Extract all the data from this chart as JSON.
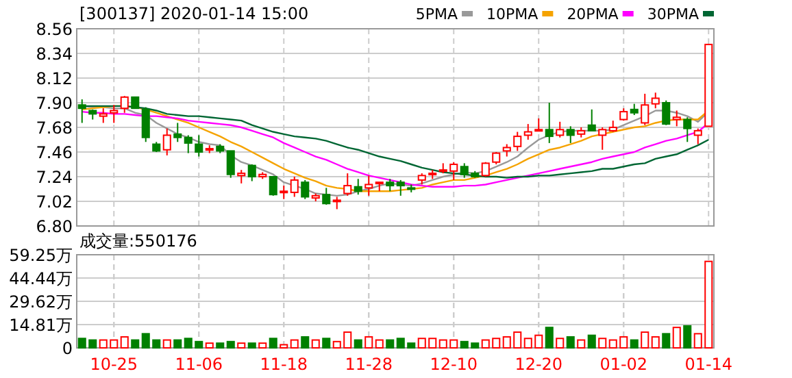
{
  "chart_data": [
    {
      "type": "candlestick",
      "title": "[300137] 2020-01-14 15:00",
      "categories": [
        null,
        null,
        null,
        null,
        null,
        null,
        null,
        null,
        null,
        null,
        null,
        null,
        null,
        null,
        null,
        null,
        null,
        null,
        null,
        null,
        null,
        null,
        null,
        null,
        null,
        null,
        null,
        null,
        null,
        null,
        null,
        null,
        null,
        null,
        null,
        null,
        null,
        null,
        null,
        null,
        null,
        null,
        null,
        null,
        null,
        null,
        null,
        null,
        null,
        null,
        null,
        null,
        null,
        null,
        null,
        null,
        null,
        null,
        null,
        null
      ],
      "ohlc": [
        [
          7.88,
          7.93,
          7.72,
          7.85
        ],
        [
          7.83,
          7.84,
          7.75,
          7.8
        ],
        [
          7.78,
          7.85,
          7.72,
          7.8
        ],
        [
          7.81,
          7.88,
          7.72,
          7.83
        ],
        [
          7.85,
          7.96,
          7.81,
          7.95
        ],
        [
          7.95,
          7.95,
          7.85,
          7.85
        ],
        [
          7.84,
          7.86,
          7.55,
          7.59
        ],
        [
          7.53,
          7.55,
          7.46,
          7.47
        ],
        [
          7.48,
          7.67,
          7.43,
          7.61
        ],
        [
          7.62,
          7.72,
          7.55,
          7.59
        ],
        [
          7.59,
          7.61,
          7.45,
          7.54
        ],
        [
          7.53,
          7.61,
          7.42,
          7.46
        ],
        [
          7.48,
          7.52,
          7.45,
          7.49
        ],
        [
          7.51,
          7.53,
          7.45,
          7.47
        ],
        [
          7.47,
          7.47,
          7.23,
          7.26
        ],
        [
          7.25,
          7.3,
          7.18,
          7.27
        ],
        [
          7.34,
          7.35,
          7.2,
          7.24
        ],
        [
          7.24,
          7.28,
          7.22,
          7.26
        ],
        [
          7.24,
          7.24,
          7.07,
          7.08
        ],
        [
          7.1,
          7.16,
          7.04,
          7.11
        ],
        [
          7.1,
          7.24,
          7.06,
          7.21
        ],
        [
          7.19,
          7.21,
          7.04,
          7.06
        ],
        [
          7.05,
          7.09,
          7.02,
          7.07
        ],
        [
          7.08,
          7.14,
          6.99,
          7.0
        ],
        [
          7.02,
          7.06,
          6.95,
          7.03
        ],
        [
          7.09,
          7.27,
          7.07,
          7.16
        ],
        [
          7.15,
          7.22,
          7.08,
          7.11
        ],
        [
          7.14,
          7.25,
          7.07,
          7.17
        ],
        [
          7.18,
          7.19,
          7.11,
          7.19
        ],
        [
          7.19,
          7.22,
          7.11,
          7.16
        ],
        [
          7.19,
          7.21,
          7.07,
          7.16
        ],
        [
          7.14,
          7.17,
          7.1,
          7.13
        ],
        [
          7.21,
          7.27,
          7.17,
          7.25
        ],
        [
          7.26,
          7.3,
          7.22,
          7.27
        ],
        [
          7.29,
          7.36,
          7.27,
          7.3
        ],
        [
          7.29,
          7.37,
          7.21,
          7.35
        ],
        [
          7.33,
          7.36,
          7.23,
          7.26
        ],
        [
          7.27,
          7.29,
          7.23,
          7.24
        ],
        [
          7.25,
          7.37,
          7.24,
          7.36
        ],
        [
          7.37,
          7.46,
          7.35,
          7.45
        ],
        [
          7.47,
          7.53,
          7.42,
          7.5
        ],
        [
          7.51,
          7.64,
          7.47,
          7.6
        ],
        [
          7.61,
          7.71,
          7.57,
          7.64
        ],
        [
          7.65,
          7.76,
          7.65,
          7.66
        ],
        [
          7.66,
          7.9,
          7.54,
          7.6
        ],
        [
          7.61,
          7.73,
          7.59,
          7.66
        ],
        [
          7.66,
          7.69,
          7.54,
          7.61
        ],
        [
          7.62,
          7.68,
          7.59,
          7.65
        ],
        [
          7.7,
          7.84,
          7.65,
          7.65
        ],
        [
          7.61,
          7.68,
          7.48,
          7.66
        ],
        [
          7.65,
          7.74,
          7.64,
          7.68
        ],
        [
          7.75,
          7.85,
          7.74,
          7.82
        ],
        [
          7.84,
          7.89,
          7.79,
          7.81
        ],
        [
          7.72,
          7.98,
          7.7,
          7.88
        ],
        [
          7.89,
          7.99,
          7.85,
          7.94
        ],
        [
          7.9,
          7.92,
          7.7,
          7.71
        ],
        [
          7.75,
          7.83,
          7.69,
          7.77
        ],
        [
          7.75,
          7.77,
          7.55,
          7.67
        ],
        [
          7.61,
          7.67,
          7.53,
          7.65
        ],
        [
          7.69,
          8.42,
          7.69,
          8.42
        ]
      ],
      "colors": [
        "#008000",
        "#008000",
        "#ff0000",
        "#ff0000",
        "#ff0000",
        "#008000",
        "#008000",
        "#008000",
        "#ff0000",
        "#008000",
        "#008000",
        "#008000",
        "#ff0000",
        "#008000",
        "#008000",
        "#ff0000",
        "#008000",
        "#ff0000",
        "#008000",
        "#ff0000",
        "#ff0000",
        "#008000",
        "#ff0000",
        "#008000",
        "#ff0000",
        "#ff0000",
        "#008000",
        "#ff0000",
        "#ff0000",
        "#008000",
        "#008000",
        "#008000",
        "#ff0000",
        "#ff0000",
        "#ff0000",
        "#ff0000",
        "#008000",
        "#008000",
        "#ff0000",
        "#ff0000",
        "#ff0000",
        "#ff0000",
        "#ff0000",
        "#ff0000",
        "#008000",
        "#ff0000",
        "#008000",
        "#ff0000",
        "#008000",
        "#ff0000",
        "#ff0000",
        "#ff0000",
        "#008000",
        "#ff0000",
        "#ff0000",
        "#008000",
        "#ff0000",
        "#008000",
        "#ff0000",
        "#ff0000"
      ],
      "series": [
        {
          "name": "5PMA",
          "type": "line",
          "color": "#999999",
          "values": [
            7.87,
            7.86,
            7.86,
            7.85,
            7.85,
            7.81,
            7.79,
            7.72,
            7.67,
            7.62,
            7.59,
            7.55,
            7.53,
            7.52,
            7.43,
            7.37,
            7.34,
            7.3,
            7.26,
            7.19,
            7.16,
            7.13,
            7.09,
            7.08,
            7.07,
            7.08,
            7.11,
            7.13,
            7.16,
            7.18,
            7.17,
            7.16,
            7.18,
            7.21,
            7.24,
            7.26,
            7.28,
            7.27,
            7.29,
            7.33,
            7.37,
            7.42,
            7.5,
            7.57,
            7.61,
            7.64,
            7.65,
            7.65,
            7.65,
            7.65,
            7.66,
            7.7,
            7.74,
            7.78,
            7.83,
            7.83,
            7.81,
            7.78,
            7.73,
            7.82
          ]
        },
        {
          "name": "10PMA",
          "type": "line",
          "color": "#f5a300",
          "values": [
            7.84,
            7.85,
            7.86,
            7.87,
            7.87,
            7.86,
            7.84,
            7.81,
            7.78,
            7.75,
            7.72,
            7.68,
            7.64,
            7.6,
            7.55,
            7.51,
            7.46,
            7.41,
            7.36,
            7.31,
            7.27,
            7.23,
            7.2,
            7.16,
            7.14,
            7.13,
            7.11,
            7.11,
            7.11,
            7.11,
            7.12,
            7.13,
            7.14,
            7.17,
            7.19,
            7.21,
            7.21,
            7.23,
            7.25,
            7.28,
            7.31,
            7.35,
            7.4,
            7.44,
            7.48,
            7.5,
            7.53,
            7.56,
            7.6,
            7.62,
            7.64,
            7.66,
            7.68,
            7.69,
            7.72,
            7.74,
            7.75,
            7.75,
            7.75,
            7.83
          ]
        },
        {
          "name": "20PMA",
          "type": "line",
          "color": "#ff00ff",
          "values": [
            7.82,
            7.81,
            7.81,
            7.8,
            7.8,
            7.79,
            7.78,
            7.78,
            7.77,
            7.76,
            7.74,
            7.73,
            7.72,
            7.71,
            7.7,
            7.68,
            7.65,
            7.62,
            7.59,
            7.54,
            7.5,
            7.46,
            7.42,
            7.39,
            7.35,
            7.31,
            7.28,
            7.25,
            7.23,
            7.21,
            7.19,
            7.17,
            7.16,
            7.15,
            7.15,
            7.15,
            7.16,
            7.16,
            7.17,
            7.19,
            7.21,
            7.23,
            7.25,
            7.27,
            7.29,
            7.31,
            7.33,
            7.35,
            7.37,
            7.4,
            7.42,
            7.44,
            7.46,
            7.5,
            7.53,
            7.56,
            7.58,
            7.61,
            7.64,
            7.72
          ]
        },
        {
          "name": "30PMA",
          "type": "line",
          "color": "#006633",
          "values": [
            7.87,
            7.87,
            7.87,
            7.87,
            7.87,
            7.86,
            7.85,
            7.83,
            7.8,
            7.79,
            7.78,
            7.78,
            7.77,
            7.76,
            7.75,
            7.74,
            7.7,
            7.67,
            7.64,
            7.62,
            7.6,
            7.59,
            7.58,
            7.56,
            7.53,
            7.5,
            7.48,
            7.45,
            7.42,
            7.4,
            7.38,
            7.35,
            7.32,
            7.3,
            7.28,
            7.27,
            7.26,
            7.25,
            7.24,
            7.24,
            7.23,
            7.24,
            7.24,
            7.25,
            7.25,
            7.26,
            7.27,
            7.28,
            7.29,
            7.31,
            7.31,
            7.33,
            7.35,
            7.36,
            7.4,
            7.42,
            7.44,
            7.48,
            7.52,
            7.57
          ]
        }
      ],
      "ylim": [
        6.8,
        8.56
      ],
      "yticks": [
        {
          "value": 6.8,
          "label": "6.80"
        },
        7.02,
        7.24,
        7.46,
        7.68,
        {
          "value": 7.9,
          "label": "7.90"
        },
        8.12,
        8.34,
        8.56
      ],
      "grid": true,
      "legend": "top right",
      "tick_labels": "y"
    },
    {
      "type": "bar",
      "title": "成交量:550176",
      "categories": [
        null,
        null,
        null,
        "10-25",
        null,
        null,
        null,
        null,
        null,
        null,
        null,
        "11-06",
        null,
        null,
        null,
        null,
        null,
        null,
        null,
        "11-18",
        null,
        null,
        null,
        null,
        null,
        null,
        null,
        "11-28",
        null,
        null,
        null,
        null,
        null,
        null,
        null,
        "12-10",
        null,
        null,
        null,
        null,
        null,
        null,
        null,
        "12-20",
        null,
        null,
        null,
        null,
        null,
        null,
        null,
        "01-02",
        null,
        null,
        null,
        null,
        null,
        null,
        null,
        "01-14"
      ],
      "values": [
        6,
        5,
        5,
        5,
        7,
        5,
        9,
        5,
        5,
        5,
        6,
        4,
        3,
        3,
        4,
        3,
        3,
        3,
        6,
        2,
        5,
        7,
        5,
        6,
        4,
        10,
        5,
        7,
        5,
        5,
        6,
        3,
        6,
        6,
        5,
        5,
        4,
        3,
        5,
        6,
        7,
        10,
        6,
        8,
        13,
        6,
        7,
        5,
        8,
        6,
        5,
        7,
        5,
        10,
        7,
        9,
        13,
        14,
        9,
        55.02
      ],
      "colors": [
        "#008000",
        "#008000",
        "#ff0000",
        "#ff0000",
        "#ff0000",
        "#008000",
        "#008000",
        "#008000",
        "#ff0000",
        "#008000",
        "#008000",
        "#008000",
        "#ff0000",
        "#008000",
        "#008000",
        "#ff0000",
        "#008000",
        "#ff0000",
        "#008000",
        "#ff0000",
        "#ff0000",
        "#008000",
        "#ff0000",
        "#008000",
        "#ff0000",
        "#ff0000",
        "#008000",
        "#ff0000",
        "#ff0000",
        "#008000",
        "#008000",
        "#008000",
        "#ff0000",
        "#ff0000",
        "#ff0000",
        "#ff0000",
        "#008000",
        "#008000",
        "#ff0000",
        "#ff0000",
        "#ff0000",
        "#ff0000",
        "#ff0000",
        "#ff0000",
        "#008000",
        "#ff0000",
        "#008000",
        "#ff0000",
        "#008000",
        "#ff0000",
        "#ff0000",
        "#ff0000",
        "#008000",
        "#ff0000",
        "#ff0000",
        "#008000",
        "#ff0000",
        "#008000",
        "#ff0000",
        "#ff0000"
      ],
      "ylim": [
        0,
        59.25
      ],
      "yticks": [
        0,
        {
          "value": 14.81,
          "label": "14.81万"
        },
        {
          "value": 29.62,
          "label": "29.62万"
        },
        {
          "value": 44.44,
          "label": "44.44万"
        },
        {
          "value": 59.25,
          "label": "59.25万"
        }
      ],
      "grid": true
    }
  ]
}
